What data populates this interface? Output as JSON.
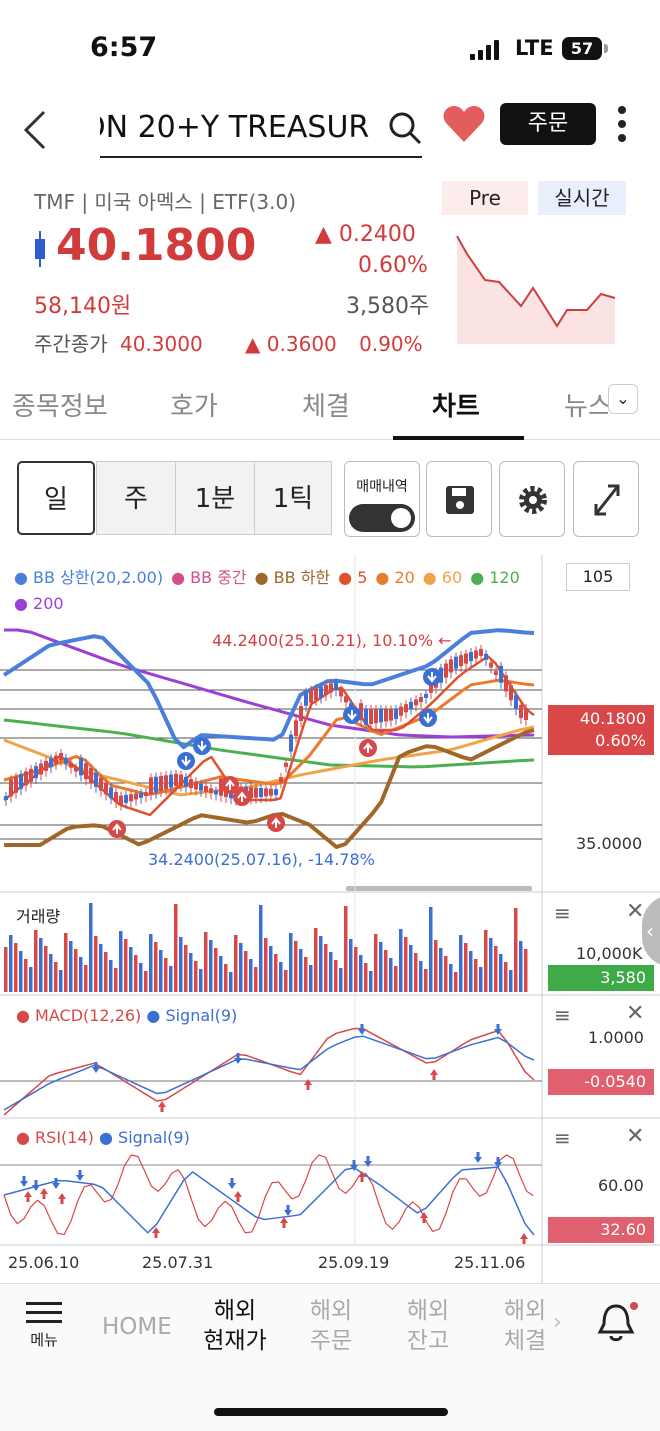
{
  "status": {
    "time": "6:57",
    "network": "LTE",
    "battery": "57"
  },
  "header": {
    "title": "ON 20+Y TREASUR",
    "order_label": "주문"
  },
  "info": {
    "desc": "TMF | 미국 아멕스 | ETF(3.0)",
    "pre": "Pre",
    "realtime": "실시간",
    "price": "40.1800",
    "change": "▲ 0.2400",
    "change_pct": "0.60%",
    "won": "58,140원",
    "volume": "3,580주",
    "weekly_label": "주간종가",
    "weekly_close": "40.3000",
    "weekly_change": "▲ 0.3600",
    "weekly_pct": "0.90%"
  },
  "tabs": [
    "종목정보",
    "호가",
    "체결",
    "차트",
    "뉴스"
  ],
  "toolbar": {
    "periods": [
      "일",
      "주",
      "1분",
      "1틱"
    ],
    "trade_history": "매매내역"
  },
  "chart": {
    "legend": [
      {
        "label": "BB 상한(20,2.00)",
        "color": "#4a7fdb"
      },
      {
        "label": "BB 중간",
        "color": "#d44f8a"
      },
      {
        "label": "BB 하한",
        "color": "#a0672a"
      },
      {
        "label": "5",
        "color": "#e0522c"
      },
      {
        "label": "20",
        "color": "#ea7b2d"
      },
      {
        "label": "60",
        "color": "#f0a34a"
      },
      {
        "label": "120",
        "color": "#4caf50"
      },
      {
        "label": "200",
        "color": "#9c3fd6"
      }
    ],
    "count_box": "105",
    "high_note": "44.2400(25.10.21), 10.10% ←",
    "low_note": "34.2400(25.07.16), -14.78%",
    "price_tag": "40.1800",
    "price_tag_pct": "0.60%",
    "axis_low": "35.0000",
    "volume_title": "거래량",
    "volume_axis": "10,000K",
    "volume_tag": "3,580",
    "macd_title": "MACD(12,26)",
    "macd_signal": "Signal(9)",
    "macd_axis": "1.0000",
    "macd_tag": "-0.0540",
    "rsi_title": "RSI(14)",
    "rsi_signal": "Signal(9)",
    "rsi_axis": "60.00",
    "rsi_tag": "32.60",
    "dates": [
      "25.06.10",
      "25.07.31",
      "25.09.19",
      "25.11.06"
    ]
  },
  "bottom_nav": {
    "menu": "메뉴",
    "home": "HOME",
    "items": [
      "해외\n현재가",
      "해외\n주문",
      "해외\n잔고",
      "해외\n체결"
    ]
  },
  "chart_data": {
    "type": "line",
    "title": "",
    "x": [
      "25.06.10",
      "25.07.31",
      "25.09.19",
      "25.11.06"
    ],
    "price_high": 44.24,
    "price_high_date": "25.10.21",
    "price_low": 34.24,
    "price_low_date": "25.07.16",
    "last": 40.18,
    "ylim": [
      34,
      45
    ]
  }
}
